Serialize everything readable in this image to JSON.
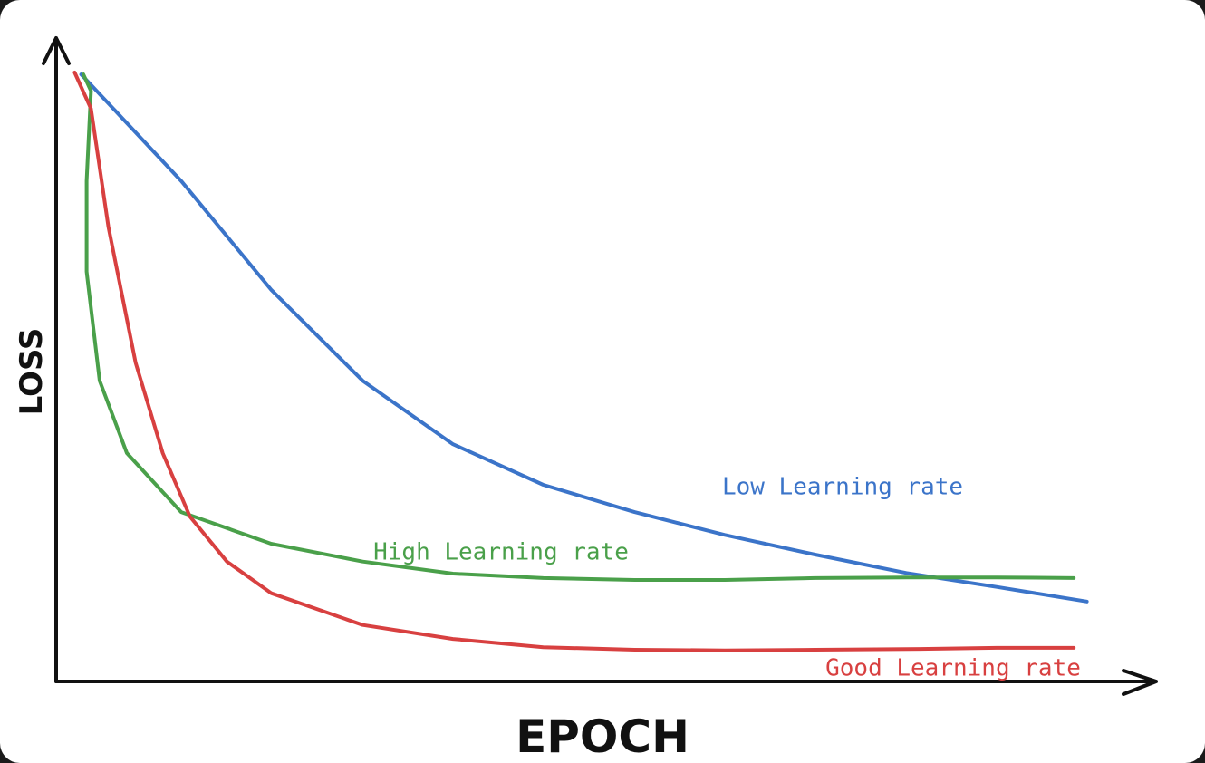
{
  "chart_data": {
    "type": "line",
    "xlabel": "EPOCH",
    "ylabel": "LOSS",
    "xlim": [
      0,
      100
    ],
    "ylim": [
      0,
      100
    ],
    "series": [
      {
        "name": "Low Learning rate",
        "color": "#3b74c9",
        "x": [
          2.3,
          11.5,
          19.8,
          28.2,
          36.5,
          44.8,
          53.2,
          61.5,
          69.8,
          78.2,
          86.5,
          94.8
        ],
        "values": [
          95.7,
          78.9,
          61.7,
          47.4,
          37.4,
          31.0,
          26.7,
          23.1,
          20.0,
          17.1,
          14.9,
          12.6
        ]
      },
      {
        "name": "High Learning rate",
        "color": "#4aa04a",
        "x": [
          2.5,
          3.2,
          2.8,
          2.8,
          4.0,
          6.5,
          11.5,
          19.8,
          28.2,
          36.5,
          44.8,
          53.2,
          61.5,
          69.8,
          78.2,
          86.5,
          93.6
        ],
        "values": [
          95.7,
          93.1,
          78.9,
          64.6,
          47.4,
          36.0,
          26.7,
          21.7,
          18.9,
          17.0,
          16.3,
          16.0,
          16.0,
          16.3,
          16.4,
          16.4,
          16.3
        ]
      },
      {
        "name": "Good Learning rate",
        "color": "#d84040",
        "x": [
          1.7,
          3.2,
          4.8,
          7.3,
          9.8,
          12.3,
          15.7,
          19.8,
          28.2,
          36.5,
          44.8,
          53.2,
          61.5,
          69.8,
          78.2,
          86.5,
          93.6
        ],
        "values": [
          96.0,
          90.3,
          71.7,
          50.3,
          36.0,
          26.0,
          18.9,
          13.9,
          8.9,
          6.7,
          5.4,
          5.0,
          4.9,
          5.0,
          5.1,
          5.3,
          5.3
        ]
      }
    ]
  }
}
